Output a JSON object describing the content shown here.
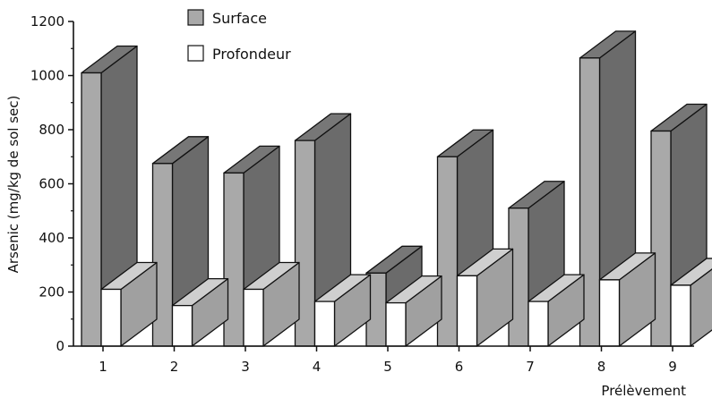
{
  "chart_data": {
    "type": "bar",
    "categories": [
      "1",
      "2",
      "3",
      "4",
      "5",
      "6",
      "7",
      "8",
      "9"
    ],
    "series": [
      {
        "name": "Surface",
        "values": [
          1010,
          675,
          640,
          760,
          270,
          700,
          510,
          1065,
          795
        ]
      },
      {
        "name": "Profondeur",
        "values": [
          210,
          150,
          210,
          165,
          160,
          260,
          165,
          245,
          225
        ]
      }
    ],
    "xlabel": "Prélèvement",
    "ylabel": "Arsenic (mg/kg de sol sec)",
    "ylim": [
      0,
      1200
    ],
    "yticks": [
      "0",
      "200",
      "400",
      "600",
      "800",
      "1000",
      "1200"
    ],
    "grid": false,
    "legend_position": "top-center",
    "style": "3d-bars",
    "colors": {
      "surface_front": "#a9a9a9",
      "surface_side": "#6b6b6b",
      "surface_top": "#777777",
      "depth_front": "#ffffff",
      "depth_side": "#a0a0a0",
      "depth_top": "#cfcfcf",
      "outline": "#111111"
    }
  }
}
